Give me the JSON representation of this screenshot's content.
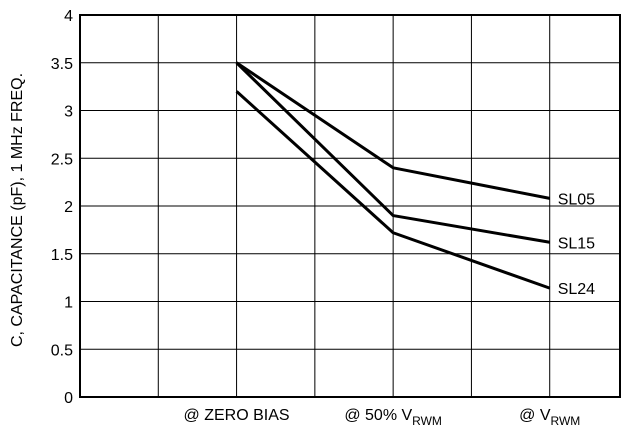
{
  "chart_data": {
    "type": "line",
    "ylabel": "C, CAPACITANCE (pF), 1 MHz FREQ.",
    "categories": [
      {
        "text": "@ ZERO BIAS",
        "sub": ""
      },
      {
        "text": "@ 50% V",
        "sub": "RWM"
      },
      {
        "text": "@ V",
        "sub": "RWM"
      }
    ],
    "x": [
      1,
      2,
      3
    ],
    "xlim": [
      0,
      3.5
    ],
    "ylim": [
      0,
      4
    ],
    "yticks": [
      "0",
      "0.5",
      "1",
      "1.5",
      "2",
      "2.5",
      "3",
      "3.5",
      "4"
    ],
    "grid": true,
    "series": [
      {
        "name": "SL05",
        "x": [
          1,
          2,
          3
        ],
        "values": [
          3.5,
          2.4,
          2.08
        ]
      },
      {
        "name": "SL15",
        "x": [
          1,
          2,
          3
        ],
        "values": [
          3.5,
          1.9,
          1.62
        ]
      },
      {
        "name": "SL24",
        "x": [
          1,
          2,
          3
        ],
        "values": [
          3.2,
          1.72,
          1.14
        ]
      }
    ],
    "line_color": "#000000"
  }
}
